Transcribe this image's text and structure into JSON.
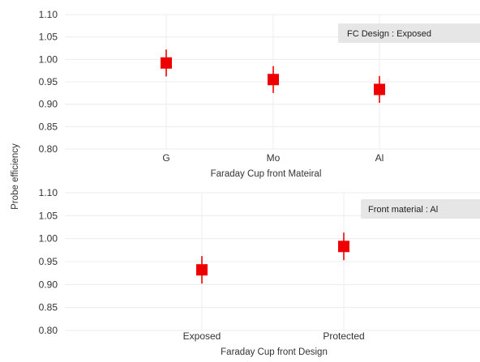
{
  "shared_ylabel": "Probe efficiency",
  "chart_data": [
    {
      "type": "scatter",
      "categories": [
        "G",
        "Mo",
        "Al"
      ],
      "values": [
        0.992,
        0.955,
        0.933
      ],
      "errors": [
        0.03,
        0.03,
        0.03
      ],
      "xlabel": "Faraday Cup front Mateiral",
      "ylim": [
        0.8,
        1.1
      ],
      "yticks": [
        "0.80",
        "0.85",
        "0.90",
        "0.95",
        "1.00",
        "1.05",
        "1.10"
      ],
      "annotation": "FC Design : Exposed",
      "marker_color": "#ee0000",
      "grid": true
    },
    {
      "type": "scatter",
      "categories": [
        "Exposed",
        "Protected"
      ],
      "values": [
        0.932,
        0.983
      ],
      "errors": [
        0.03,
        0.03
      ],
      "xlabel": "Faraday Cup front Design",
      "ylim": [
        0.8,
        1.1
      ],
      "yticks": [
        "0.80",
        "0.85",
        "0.90",
        "0.95",
        "1.00",
        "1.05",
        "1.10"
      ],
      "annotation": "Front material : Al",
      "marker_color": "#ee0000",
      "grid": true
    }
  ]
}
